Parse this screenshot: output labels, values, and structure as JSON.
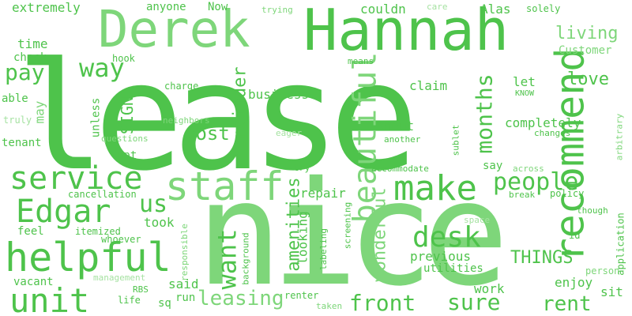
{
  "palette": {
    "dark": "#4ec34b",
    "mid": "#66cc62",
    "light": "#7ed67a",
    "pale": "#a6e2a2",
    "background": "#ffffff"
  },
  "words": [
    {
      "text": "lease",
      "color": "dark"
    },
    {
      "text": "nice",
      "color": "light"
    },
    {
      "text": "Hannah",
      "color": "dark"
    },
    {
      "text": "Derek",
      "color": "light"
    },
    {
      "text": "recommend",
      "color": "dark"
    },
    {
      "text": "staff",
      "color": "light"
    },
    {
      "text": "helpful",
      "color": "dark"
    },
    {
      "text": "beautiful",
      "color": "light"
    },
    {
      "text": "service",
      "color": "dark"
    },
    {
      "text": "make",
      "color": "dark"
    },
    {
      "text": "unit",
      "color": "dark"
    },
    {
      "text": "Edgar",
      "color": "dark"
    },
    {
      "text": "front",
      "color": "dark"
    },
    {
      "text": "sure",
      "color": "dark"
    },
    {
      "text": "rent",
      "color": "dark"
    },
    {
      "text": "leasing",
      "color": "light"
    },
    {
      "text": "desk",
      "color": "dark"
    },
    {
      "text": "people",
      "color": "dark"
    },
    {
      "text": "want",
      "color": "dark"
    },
    {
      "text": "months",
      "color": "dark"
    },
    {
      "text": "wonderful",
      "color": "light"
    },
    {
      "text": "way",
      "color": "dark"
    },
    {
      "text": "cost",
      "color": "dark"
    },
    {
      "text": "love",
      "color": "dark"
    },
    {
      "text": "living",
      "color": "light"
    },
    {
      "text": "pay",
      "color": "dark"
    },
    {
      "text": "us",
      "color": "dark"
    },
    {
      "text": "THINGS",
      "color": "dark"
    },
    {
      "text": "SIGN",
      "color": "dark"
    },
    {
      "text": "amenities",
      "color": "dark"
    },
    {
      "text": "remainder",
      "color": "dark"
    },
    {
      "text": "completely",
      "color": "dark"
    },
    {
      "text": "previous",
      "color": "dark"
    },
    {
      "text": "Shout",
      "color": "dark"
    },
    {
      "text": "business",
      "color": "dark"
    },
    {
      "text": "may",
      "color": "light"
    },
    {
      "text": "extremely",
      "color": "dark"
    },
    {
      "text": "anyone",
      "color": "dark"
    },
    {
      "text": "Now",
      "color": "dark"
    },
    {
      "text": "couldn",
      "color": "dark"
    },
    {
      "text": "Alas",
      "color": "dark"
    },
    {
      "text": "solely",
      "color": "dark"
    },
    {
      "text": "Customer",
      "color": "light"
    },
    {
      "text": "time",
      "color": "dark"
    },
    {
      "text": "check",
      "color": "dark"
    },
    {
      "text": "able",
      "color": "dark"
    },
    {
      "text": "tenant",
      "color": "dark"
    },
    {
      "text": "truly",
      "color": "pale"
    },
    {
      "text": "hook",
      "color": "dark"
    },
    {
      "text": "means",
      "color": "dark"
    },
    {
      "text": "trying",
      "color": "light"
    },
    {
      "text": "care",
      "color": "pale"
    },
    {
      "text": "charge",
      "color": "dark"
    },
    {
      "text": "claim",
      "color": "dark"
    },
    {
      "text": "let",
      "color": "dark"
    },
    {
      "text": "KNOW",
      "color": "dark"
    },
    {
      "text": "unless",
      "color": "dark"
    },
    {
      "text": "neighbors",
      "color": "light"
    },
    {
      "text": "questions",
      "color": "light"
    },
    {
      "text": "eager",
      "color": "pale"
    },
    {
      "text": "another",
      "color": "dark"
    },
    {
      "text": "sublet",
      "color": "dark"
    },
    {
      "text": "changes",
      "color": "dark"
    },
    {
      "text": "arbitrary",
      "color": "light"
    },
    {
      "text": "person",
      "color": "light"
    },
    {
      "text": "apt",
      "color": "dark"
    },
    {
      "text": "try",
      "color": "dark"
    },
    {
      "text": "accommodate",
      "color": "dark"
    },
    {
      "text": "say",
      "color": "dark"
    },
    {
      "text": "across",
      "color": "light"
    },
    {
      "text": "break",
      "color": "dark"
    },
    {
      "text": "policy",
      "color": "dark"
    },
    {
      "text": "repair",
      "color": "dark"
    },
    {
      "text": "cancellation",
      "color": "dark"
    },
    {
      "text": "feel",
      "color": "dark"
    },
    {
      "text": "itemized",
      "color": "dark"
    },
    {
      "text": "took",
      "color": "dark"
    },
    {
      "text": "whoever",
      "color": "dark"
    },
    {
      "text": "responsible",
      "color": "light"
    },
    {
      "text": "background",
      "color": "dark"
    },
    {
      "text": "looking",
      "color": "dark"
    },
    {
      "text": "labeling",
      "color": "dark"
    },
    {
      "text": "screening",
      "color": "dark"
    },
    {
      "text": "space",
      "color": "pale"
    },
    {
      "text": "though",
      "color": "dark"
    },
    {
      "text": "id",
      "color": "dark"
    },
    {
      "text": "application",
      "color": "dark"
    },
    {
      "text": "vacant",
      "color": "dark"
    },
    {
      "text": "management",
      "color": "pale"
    },
    {
      "text": "life",
      "color": "dark"
    },
    {
      "text": "RBS",
      "color": "dark"
    },
    {
      "text": "said",
      "color": "dark"
    },
    {
      "text": "sq",
      "color": "dark"
    },
    {
      "text": "run",
      "color": "dark"
    },
    {
      "text": "utilities",
      "color": "dark"
    },
    {
      "text": "renter",
      "color": "dark"
    },
    {
      "text": "taken",
      "color": "light"
    },
    {
      "text": "work",
      "color": "dark"
    },
    {
      "text": "enjoy",
      "color": "dark"
    },
    {
      "text": "sit",
      "color": "dark"
    }
  ]
}
